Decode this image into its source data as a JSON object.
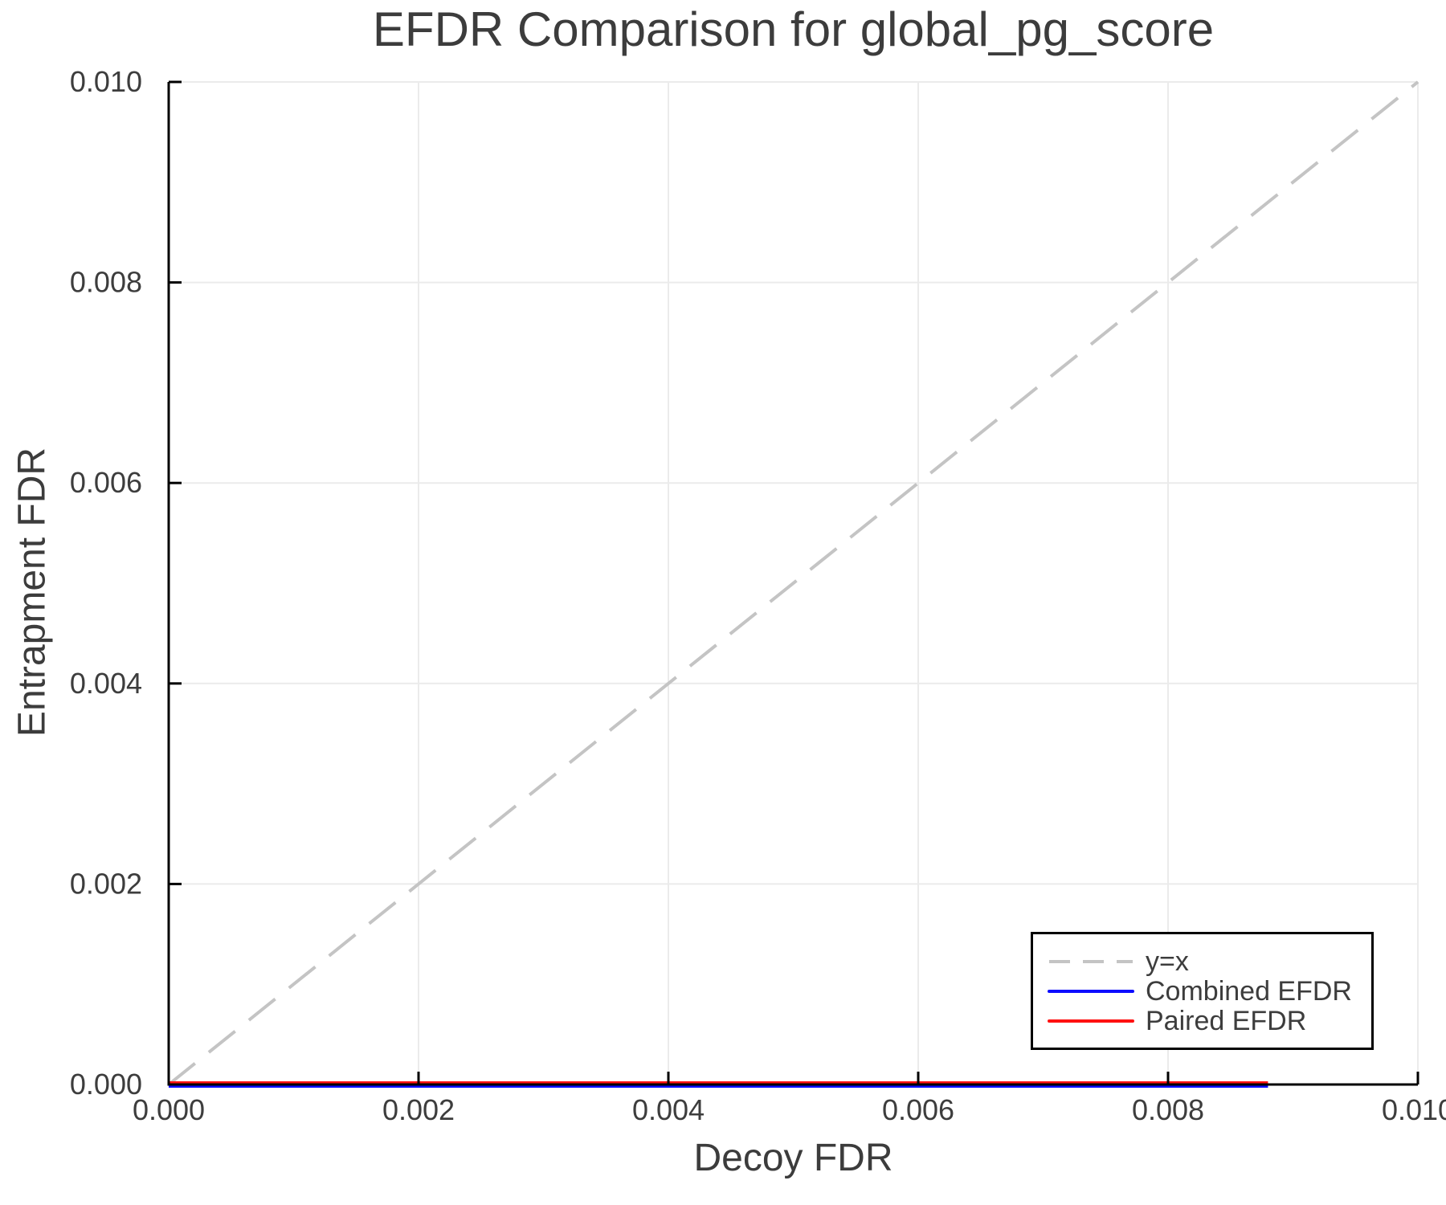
{
  "chart_data": {
    "type": "line",
    "title": "EFDR Comparison for global_pg_score",
    "xlabel": "Decoy FDR",
    "ylabel": "Entrapment FDR",
    "xlim": [
      0.0,
      0.01
    ],
    "ylim": [
      0.0,
      0.01
    ],
    "grid": true,
    "xticks": {
      "values": [
        0.0,
        0.002,
        0.004,
        0.006,
        0.008,
        0.01
      ],
      "labels": [
        "0.000",
        "0.002",
        "0.004",
        "0.006",
        "0.008",
        "0.010"
      ]
    },
    "yticks": {
      "values": [
        0.0,
        0.002,
        0.004,
        0.006,
        0.008,
        0.01
      ],
      "labels": [
        "0.000",
        "0.002",
        "0.004",
        "0.006",
        "0.008",
        "0.010"
      ]
    },
    "legend_position": "lower right",
    "series": [
      {
        "name": "y=x",
        "style": "dashed",
        "color": "#c4c4c4",
        "x": [
          0.0,
          0.01
        ],
        "y": [
          0.0,
          0.01
        ]
      },
      {
        "name": "Combined EFDR",
        "style": "solid",
        "color": "#0d0dff",
        "x": [
          0.0,
          0.0088
        ],
        "y": [
          0.0,
          0.0
        ]
      },
      {
        "name": "Paired EFDR",
        "style": "solid",
        "color": "#ff1111",
        "x": [
          0.0,
          0.0088
        ],
        "y": [
          0.0,
          0.0
        ]
      }
    ]
  },
  "palette": {
    "axis": "#000000",
    "grid": "#ebebeb",
    "tick_text": "#3d3d3d",
    "title_text": "#3c3c3c",
    "background": "#ffffff"
  }
}
